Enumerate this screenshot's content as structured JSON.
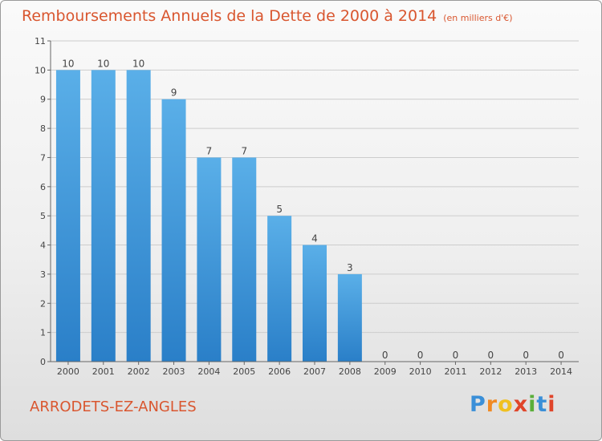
{
  "header": {
    "title": "Remboursements Annuels de la Dette de 2000 à 2014",
    "subtitle": "(en milliers d'€)"
  },
  "footer": {
    "commune": "ARRODETS-EZ-ANGLES",
    "logo_letters": [
      "P",
      "r",
      "o",
      "x",
      "i",
      "t",
      "i"
    ]
  },
  "chart_data": {
    "type": "bar",
    "title": "Remboursements Annuels de la Dette de 2000 à 2014",
    "subtitle": "(en milliers d'€)",
    "categories": [
      "2000",
      "2001",
      "2002",
      "2003",
      "2004",
      "2005",
      "2006",
      "2007",
      "2008",
      "2009",
      "2010",
      "2011",
      "2012",
      "2013",
      "2014"
    ],
    "values": [
      10,
      10,
      10,
      9,
      7,
      7,
      5,
      4,
      3,
      0,
      0,
      0,
      0,
      0,
      0
    ],
    "ylim": [
      0,
      11
    ],
    "yticks": [
      "0",
      "1",
      "2",
      "3",
      "4",
      "5",
      "6",
      "7",
      "8",
      "9",
      "10",
      "11"
    ],
    "grid": true,
    "bar_color_top": "#5aafe8",
    "bar_color_bottom": "#2a7fc8",
    "label_color": "#444444"
  }
}
